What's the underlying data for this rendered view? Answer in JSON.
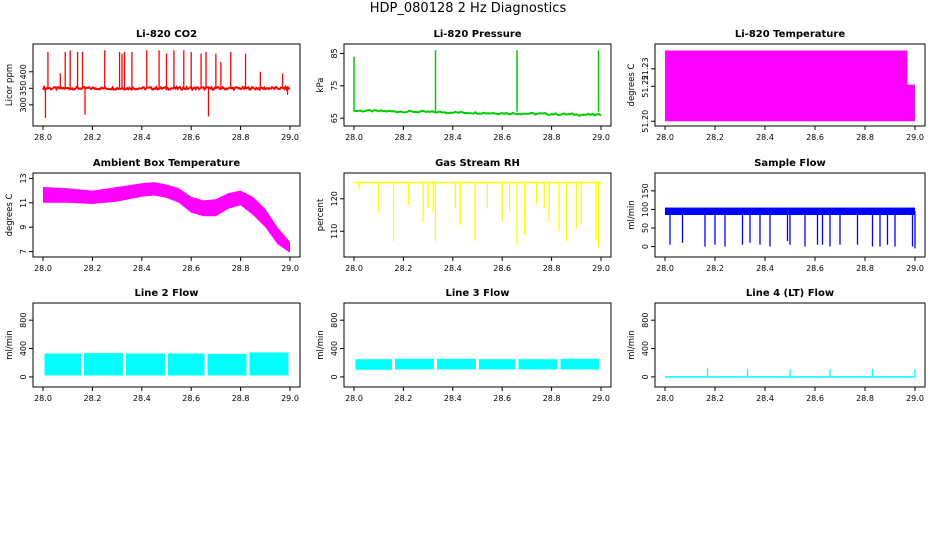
{
  "title": "HDP_080128  2 Hz Diagnostics",
  "chart_data": [
    {
      "type": "line",
      "title": "Li-820 CO2",
      "xlabel": "",
      "ylabel": "Licor ppm",
      "color": "#ff0000",
      "xlim": [
        28.0,
        29.0
      ],
      "ylim": [
        245,
        475
      ],
      "xticks": [
        "28.0",
        "28.2",
        "28.4",
        "28.6",
        "28.8",
        "29.0"
      ],
      "yticks": [
        "300",
        "350",
        "400"
      ],
      "series": [
        {
          "baseline": 350,
          "x": [
            28.0,
            28.01,
            28.02,
            28.07,
            28.09,
            28.11,
            28.14,
            28.16,
            28.17,
            28.25,
            28.31,
            28.32,
            28.33,
            28.36,
            28.42,
            28.47,
            28.5,
            28.53,
            28.57,
            28.6,
            28.64,
            28.66,
            28.67,
            28.7,
            28.72,
            28.76,
            28.82,
            28.88,
            28.97,
            28.99
          ],
          "y": [
            350,
            260,
            460,
            395,
            460,
            465,
            460,
            460,
            270,
            465,
            460,
            455,
            460,
            460,
            465,
            465,
            455,
            465,
            465,
            460,
            455,
            460,
            265,
            455,
            430,
            460,
            455,
            400,
            395,
            330
          ]
        }
      ]
    },
    {
      "type": "line",
      "title": "Li-820 Pressure",
      "xlabel": "",
      "ylabel": "kPa",
      "color": "#00cc00",
      "xlim": [
        28.0,
        29.0
      ],
      "ylim": [
        63.5,
        87
      ],
      "xticks": [
        "28.0",
        "28.2",
        "28.4",
        "28.6",
        "28.8",
        "29.0"
      ],
      "yticks": [
        "65",
        "75",
        "85"
      ],
      "series": [
        {
          "x": [
            28.0,
            28.02,
            28.2,
            28.33,
            28.5,
            28.66,
            28.8,
            28.99,
            29.0
          ],
          "y": [
            84,
            67.5,
            67,
            86,
            66.5,
            86,
            66.4,
            86,
            66
          ]
        }
      ]
    },
    {
      "type": "area",
      "title": "Li-820 Temperature",
      "xlabel": "",
      "ylabel": "degrees C",
      "color": "#ff00ff",
      "xlim": [
        28.0,
        29.0
      ],
      "ylim": [
        51.199,
        51.2425
      ],
      "xticks": [
        "28.0",
        "28.2",
        "28.4",
        "28.6",
        "28.8",
        "29.0"
      ],
      "yticks": [
        "51.20",
        "51.22",
        "51.23"
      ],
      "series": [
        {
          "x": [
            28.0,
            28.97,
            28.98,
            29.0
          ],
          "y": [
            51.2405,
            51.2405,
            51.221,
            51.221
          ],
          "bottom": 51.2
        }
      ]
    },
    {
      "type": "area",
      "title": "Ambient Box Temperature",
      "xlabel": "",
      "ylabel": "degrees C",
      "color": "#ff00ff",
      "xlim": [
        28.0,
        29.0
      ],
      "ylim": [
        6.8,
        13.2
      ],
      "xticks": [
        "28.0",
        "28.2",
        "28.4",
        "28.6",
        "28.8",
        "29.0"
      ],
      "yticks": [
        "7",
        "9",
        "11",
        "13"
      ],
      "series": [
        {
          "x": [
            28.0,
            28.1,
            28.2,
            28.3,
            28.4,
            28.45,
            28.5,
            28.55,
            28.6,
            28.65,
            28.7,
            28.75,
            28.8,
            28.85,
            28.9,
            28.95,
            29.0
          ],
          "upper": [
            12.3,
            12.2,
            12.0,
            12.3,
            12.6,
            12.7,
            12.5,
            12.2,
            11.5,
            11.2,
            11.3,
            11.8,
            12.0,
            11.5,
            10.5,
            9.0,
            7.8
          ],
          "lower": [
            11.0,
            11.0,
            10.9,
            11.1,
            11.5,
            11.6,
            11.4,
            11.0,
            10.2,
            9.9,
            9.9,
            10.5,
            10.8,
            10.0,
            9.0,
            7.6,
            6.9
          ]
        }
      ]
    },
    {
      "type": "line",
      "title": "Gas Stream RH",
      "xlabel": "",
      "ylabel": "percent",
      "color": "#ffff00",
      "xlim": [
        28.0,
        29.0
      ],
      "ylim": [
        103,
        127
      ],
      "xticks": [
        "28.0",
        "28.2",
        "28.4",
        "28.6",
        "28.8",
        "29.0"
      ],
      "yticks": [
        "110",
        "120"
      ],
      "series": [
        {
          "baseline": 125,
          "x": [
            28.02,
            28.1,
            28.16,
            28.22,
            28.28,
            28.3,
            28.32,
            28.33,
            28.41,
            28.43,
            28.49,
            28.54,
            28.6,
            28.63,
            28.66,
            28.69,
            28.74,
            28.77,
            28.79,
            28.83,
            28.86,
            28.9,
            28.92,
            28.98,
            28.99
          ],
          "y": [
            123,
            116,
            107,
            118,
            113,
            117,
            116,
            107,
            117,
            112,
            107,
            117,
            113,
            116,
            106,
            109,
            118,
            117,
            113,
            110,
            107,
            111,
            112,
            107,
            105
          ]
        }
      ]
    },
    {
      "type": "line",
      "title": "Sample Flow",
      "xlabel": "",
      "ylabel": "ml/min",
      "color": "#0000ff",
      "xlim": [
        28.0,
        29.0
      ],
      "ylim": [
        -20,
        190
      ],
      "xticks": [
        "28.0",
        "28.2",
        "28.4",
        "28.6",
        "28.8",
        "29.0"
      ],
      "yticks": [
        "0",
        "50",
        "100",
        "150"
      ],
      "series": [
        {
          "baseline": 95,
          "band": 10,
          "x": [
            28.02,
            28.07,
            28.16,
            28.2,
            28.24,
            28.31,
            28.34,
            28.38,
            28.42,
            28.49,
            28.5,
            28.56,
            28.61,
            28.63,
            28.66,
            28.7,
            28.77,
            28.83,
            28.86,
            28.89,
            28.92,
            28.99,
            29.0
          ],
          "y": [
            5,
            10,
            0,
            5,
            0,
            5,
            10,
            5,
            0,
            15,
            5,
            0,
            5,
            5,
            0,
            5,
            5,
            0,
            0,
            5,
            0,
            0,
            -5
          ]
        }
      ]
    },
    {
      "type": "area",
      "title": "Line 2 Flow",
      "xlabel": "",
      "ylabel": "ml/min",
      "color": "#00ffff",
      "xlim": [
        28.0,
        29.0
      ],
      "ylim": [
        -100,
        1000
      ],
      "xticks": [
        "28.0",
        "28.2",
        "28.4",
        "28.6",
        "28.8",
        "29.0"
      ],
      "yticks": [
        "0",
        "400",
        "800"
      ],
      "series": [
        {
          "x": [
            28.0,
            28.16,
            28.33,
            28.5,
            28.66,
            28.83,
            29.0
          ],
          "upper": [
            330,
            335,
            330,
            330,
            325,
            345,
            345
          ],
          "lower": [
            20,
            20,
            20,
            20,
            20,
            20,
            20
          ]
        }
      ]
    },
    {
      "type": "area",
      "title": "Line 3 Flow",
      "xlabel": "",
      "ylabel": "ml/min",
      "color": "#00ffff",
      "xlim": [
        28.0,
        29.0
      ],
      "ylim": [
        -100,
        1000
      ],
      "xticks": [
        "28.0",
        "28.2",
        "28.4",
        "28.6",
        "28.8",
        "29.0"
      ],
      "yticks": [
        "0",
        "400",
        "800"
      ],
      "series": [
        {
          "x": [
            28.0,
            28.16,
            28.33,
            28.5,
            28.66,
            28.83,
            29.0
          ],
          "upper": [
            250,
            255,
            255,
            250,
            250,
            255,
            265
          ],
          "lower": [
            100,
            105,
            105,
            105,
            105,
            105,
            105
          ]
        }
      ]
    },
    {
      "type": "line",
      "title": "Line 4 (LT) Flow",
      "xlabel": "",
      "ylabel": "ml/min",
      "color": "#00ffff",
      "xlim": [
        28.0,
        29.0
      ],
      "ylim": [
        -100,
        1000
      ],
      "xticks": [
        "28.0",
        "28.2",
        "28.4",
        "28.6",
        "28.8",
        "29.0"
      ],
      "yticks": [
        "0",
        "400",
        "800"
      ],
      "series": [
        {
          "baseline": 0,
          "x": [
            28.17,
            28.33,
            28.5,
            28.66,
            28.83,
            29.0
          ],
          "y": [
            130,
            110,
            110,
            110,
            110,
            110
          ]
        }
      ]
    }
  ]
}
